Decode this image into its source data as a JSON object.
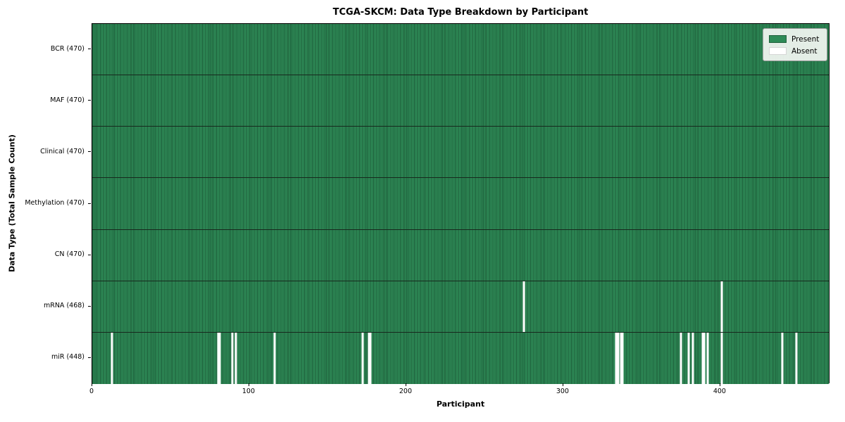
{
  "title": "TCGA-SKCM: Data Type Breakdown by Participant",
  "axes": {
    "xlabel": "Participant",
    "ylabel": "Data Type (Total Sample Count)"
  },
  "legend": {
    "position": "upper right",
    "entries": [
      {
        "label": "Present",
        "color": "#2e8b57"
      },
      {
        "label": "Absent",
        "color": "#ffffff"
      }
    ]
  },
  "colors": {
    "present": "#2e8b57",
    "present_edge": "#1d5e3a",
    "absent": "#ffffff",
    "row_divider": "#17281d",
    "spine": "#000000"
  },
  "chart_data": {
    "type": "heatmap",
    "title": "TCGA-SKCM: Data Type Breakdown by Participant",
    "xlabel": "Participant",
    "ylabel": "Data Type (Total Sample Count)",
    "x_range": [
      0,
      470
    ],
    "x_ticks": [
      0,
      100,
      200,
      300,
      400
    ],
    "n_participants": 470,
    "grid": false,
    "legend_position": "upper right",
    "cell_states": {
      "present": 1,
      "absent": 0
    },
    "rows": [
      {
        "label": "BCR (470)",
        "data_type": "BCR",
        "present_count": 470,
        "absent_participants": []
      },
      {
        "label": "MAF (470)",
        "data_type": "MAF",
        "present_count": 470,
        "absent_participants": []
      },
      {
        "label": "Clinical (470)",
        "data_type": "Clinical",
        "present_count": 470,
        "absent_participants": []
      },
      {
        "label": "Methylation (470)",
        "data_type": "Methylation",
        "present_count": 470,
        "absent_participants": []
      },
      {
        "label": "CN (470)",
        "data_type": "CN",
        "present_count": 470,
        "absent_participants": []
      },
      {
        "label": "mRNA (468)",
        "data_type": "mRNA",
        "present_count": 468,
        "absent_participants": [
          275,
          401
        ]
      },
      {
        "label": "miR (448)",
        "data_type": "miR",
        "present_count": 448,
        "absent_participants": [
          12,
          80,
          81,
          89,
          91,
          116,
          172,
          176,
          177,
          334,
          335,
          337,
          338,
          375,
          380,
          383,
          389,
          390,
          392,
          401,
          440,
          449
        ]
      }
    ]
  }
}
